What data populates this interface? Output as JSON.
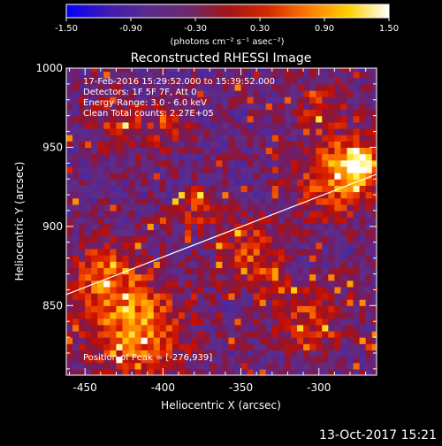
{
  "colorbar": {
    "ticks": [
      "-1.50",
      "-0.90",
      "-0.30",
      "0.30",
      "0.90",
      "1.50"
    ],
    "tick_values": [
      -1.5,
      -0.9,
      -0.3,
      0.3,
      0.9,
      1.5
    ],
    "unit_label": "(photons cm⁻² s⁻¹ asec⁻²)",
    "colors": [
      "#0000ff",
      "#3d1ab4",
      "#5a2a8e",
      "#6a2a70",
      "#a31418",
      "#d32a00",
      "#ff7a00",
      "#ffd000",
      "#ffffff"
    ]
  },
  "chart_data": {
    "type": "heatmap",
    "title": "Reconstructed RHESSI Image",
    "xlabel": "Heliocentric X (arcsec)",
    "ylabel": "Heliocentric Y (arcsec)",
    "xlim": [
      -462,
      -263
    ],
    "ylim": [
      806,
      1000
    ],
    "xticks": [
      -450,
      -400,
      -350,
      -300
    ],
    "yticks": [
      850,
      900,
      950,
      1000
    ],
    "grid": false,
    "info_lines": [
      "17-Feb-2016 15:29:52.000 to 15:39:52.000",
      "Detectors: 1F 5F 7F, Att 0",
      "Energy Range: 3.0 - 6.0 keV",
      "Clean    Total counts: 2.27E+05"
    ],
    "peak_text": "Position of Peak = [-276,939]",
    "limb_line": {
      "x": [
        -462,
        -263
      ],
      "y": [
        857,
        933
      ]
    },
    "cell_size_arcsec": 4
  },
  "footer": "13-Oct-2017 15:21"
}
